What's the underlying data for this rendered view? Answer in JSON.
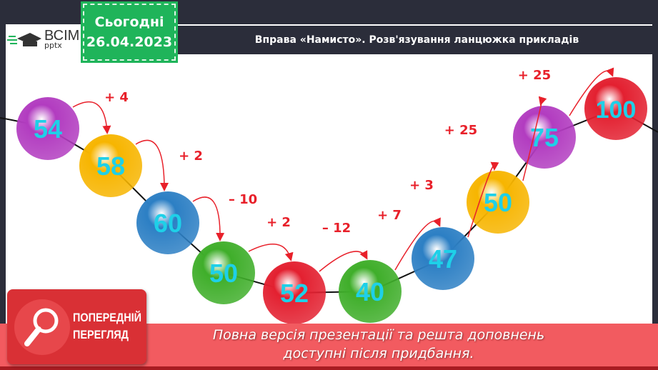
{
  "header": {
    "date_label": "Сьогодні",
    "date": "26.04.2023",
    "title": "Вправа «Намисто». Розв'язування ланцюжка прикладів",
    "logo_text": "ВСІМ",
    "logo_sub": "pptx"
  },
  "beads": [
    {
      "value": "54",
      "color": "#b23cc0"
    },
    {
      "value": "58",
      "color": "#f7b500"
    },
    {
      "value": "60",
      "color": "#2c7fc4"
    },
    {
      "value": "50",
      "color": "#3fae2a"
    },
    {
      "value": "52",
      "color": "#e32030"
    },
    {
      "value": "40",
      "color": "#3fae2a"
    },
    {
      "value": "47",
      "color": "#2c7fc4"
    },
    {
      "value": "50",
      "color": "#f7b500"
    },
    {
      "value": "75",
      "color": "#b23cc0"
    },
    {
      "value": "100",
      "color": "#e32030"
    }
  ],
  "steps": [
    "+ 4",
    "+ 2",
    "– 10",
    "+ 2",
    "– 12",
    "+ 7",
    "+ 3",
    "+ 25",
    "+ 25"
  ],
  "colors": {
    "number": "#1ed0e8",
    "step": "#e8202a",
    "arrow": "#e8202a"
  },
  "preview": {
    "line1": "ПОПЕРЕДНІЙ",
    "line2": "ПЕРЕГЛЯД"
  },
  "footer": {
    "line1": "Повна версія презентації та решта доповнень",
    "line2": "доступні після придбання."
  }
}
